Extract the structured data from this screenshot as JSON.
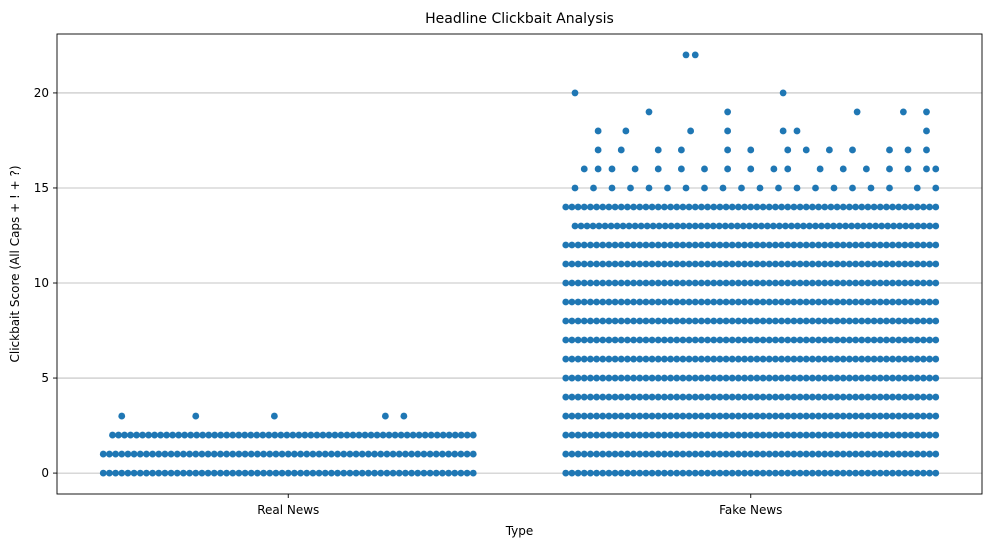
{
  "chart_data": {
    "type": "scatter",
    "title": "Headline Clickbait Analysis",
    "xlabel": "Type",
    "ylabel": "Clickbait Score (All Caps + ! + ?)",
    "categories": [
      "Real News",
      "Fake News"
    ],
    "ylim": [
      -1.1,
      23.1
    ],
    "yticks": [
      0,
      5,
      10,
      15,
      20
    ],
    "grid": "y",
    "color": "#1f77b4",
    "series": [
      {
        "category": "Real News",
        "levels": [
          {
            "y": 0,
            "jitter": [
              -0.4,
              0.4
            ],
            "dense": true
          },
          {
            "y": 1,
            "jitter": [
              -0.4,
              0.4
            ],
            "dense": true
          },
          {
            "y": 2,
            "jitter": [
              -0.38,
              0.4
            ],
            "dense": true
          },
          {
            "y": 3,
            "points": [
              -0.36,
              -0.2,
              -0.03,
              0.21,
              0.25
            ]
          }
        ]
      },
      {
        "category": "Fake News",
        "levels": [
          {
            "y": 0,
            "jitter": [
              -0.4,
              0.4
            ],
            "dense": true
          },
          {
            "y": 1,
            "jitter": [
              -0.4,
              0.4
            ],
            "dense": true
          },
          {
            "y": 2,
            "jitter": [
              -0.4,
              0.4
            ],
            "dense": true
          },
          {
            "y": 3,
            "jitter": [
              -0.4,
              0.4
            ],
            "dense": true
          },
          {
            "y": 4,
            "jitter": [
              -0.4,
              0.4
            ],
            "dense": true
          },
          {
            "y": 5,
            "jitter": [
              -0.4,
              0.4
            ],
            "dense": true
          },
          {
            "y": 6,
            "jitter": [
              -0.4,
              0.4
            ],
            "dense": true
          },
          {
            "y": 7,
            "jitter": [
              -0.4,
              0.4
            ],
            "dense": true
          },
          {
            "y": 8,
            "jitter": [
              -0.4,
              0.4
            ],
            "dense": true
          },
          {
            "y": 9,
            "jitter": [
              -0.4,
              0.4
            ],
            "dense": true
          },
          {
            "y": 10,
            "jitter": [
              -0.4,
              0.4
            ],
            "dense": true
          },
          {
            "y": 11,
            "jitter": [
              -0.4,
              0.4
            ],
            "dense": true
          },
          {
            "y": 12,
            "jitter": [
              -0.4,
              0.4
            ],
            "dense": true
          },
          {
            "y": 13,
            "jitter": [
              -0.38,
              0.4
            ],
            "dense": true
          },
          {
            "y": 14,
            "jitter": [
              -0.4,
              0.4
            ],
            "dense": true
          },
          {
            "y": 15,
            "points": [
              -0.38,
              -0.34,
              -0.3,
              -0.26,
              -0.22,
              -0.18,
              -0.14,
              -0.1,
              -0.06,
              -0.02,
              0.02,
              0.06,
              0.1,
              0.14,
              0.18,
              0.22,
              0.26,
              0.3,
              0.36,
              0.4
            ]
          },
          {
            "y": 16,
            "points": [
              -0.36,
              -0.33,
              -0.3,
              -0.25,
              -0.2,
              -0.15,
              -0.1,
              -0.05,
              0.0,
              0.05,
              0.08,
              0.15,
              0.2,
              0.25,
              0.3,
              0.34,
              0.38,
              0.4
            ]
          },
          {
            "y": 17,
            "points": [
              -0.33,
              -0.28,
              -0.2,
              -0.15,
              -0.05,
              0.0,
              0.08,
              0.12,
              0.17,
              0.22,
              0.3,
              0.34,
              0.38
            ]
          },
          {
            "y": 18,
            "points": [
              -0.33,
              -0.27,
              -0.13,
              -0.05,
              0.07,
              0.1,
              0.38
            ]
          },
          {
            "y": 19,
            "points": [
              -0.22,
              -0.05,
              0.23,
              0.33,
              0.38
            ]
          },
          {
            "y": 20,
            "points": [
              -0.38,
              0.07
            ]
          },
          {
            "y": 22,
            "points": [
              -0.14,
              -0.12
            ]
          }
        ]
      }
    ]
  }
}
